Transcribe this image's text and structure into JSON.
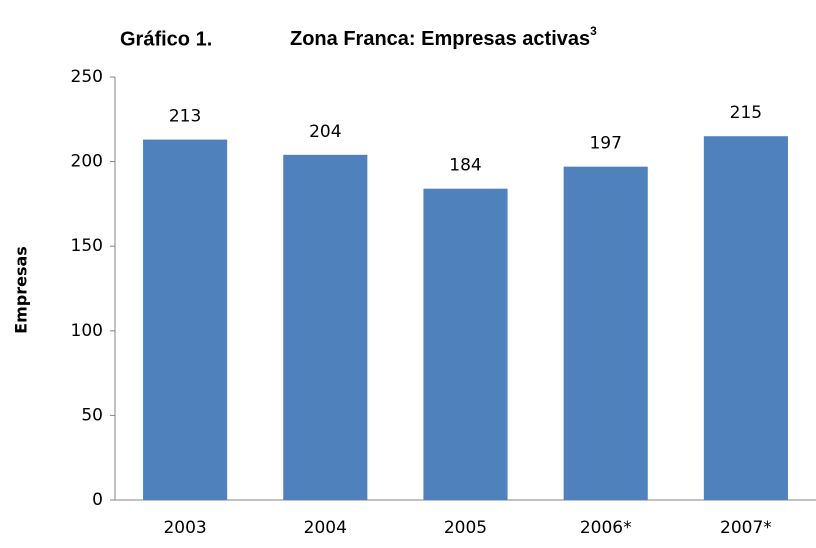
{
  "chart_data": {
    "type": "bar",
    "label": "Gráfico 1.",
    "title": "Zona Franca: Empresas activas",
    "title_superscript": "3",
    "ylabel": "Empresas",
    "categories": [
      "2003",
      "2004",
      "2005",
      "2006*",
      "2007*"
    ],
    "values": [
      213,
      204,
      184,
      197,
      215
    ],
    "color": "#4f81bd",
    "ylim": [
      0,
      250
    ],
    "yticks": [
      0,
      50,
      100,
      150,
      200,
      250
    ],
    "grid": false
  }
}
